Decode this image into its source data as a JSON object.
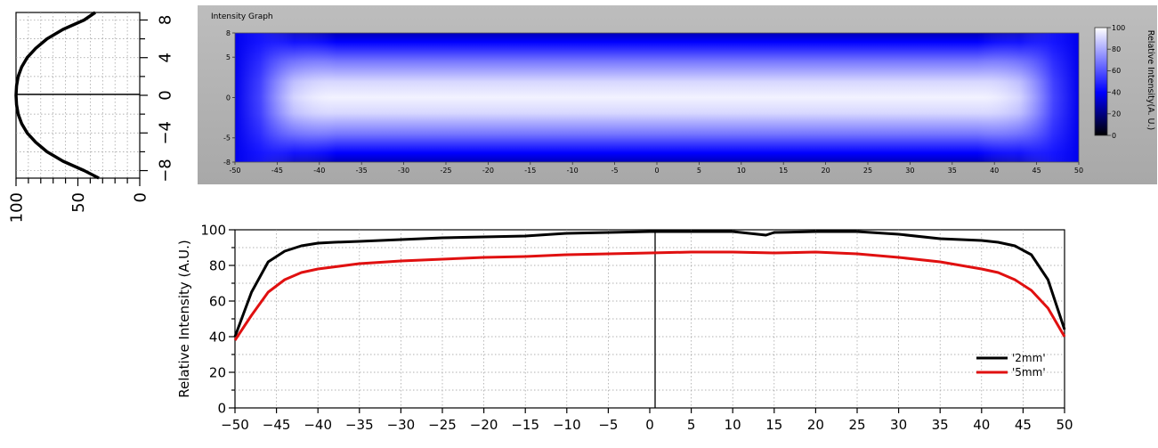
{
  "chart_data": [
    {
      "type": "line",
      "panel": "side-profile",
      "orientation": "vertical",
      "xlim": [
        100,
        0
      ],
      "x_ticks": [
        "100",
        "50",
        "0"
      ],
      "ylim": [
        -8.8,
        8.8
      ],
      "y_ticks": [
        "8",
        "4",
        "0",
        "-4",
        "-8"
      ],
      "grid": true,
      "series": [
        {
          "color": "#000000",
          "points": [
            [
              33,
              -8.8
            ],
            [
              45,
              -8
            ],
            [
              62,
              -7
            ],
            [
              75,
              -6
            ],
            [
              84,
              -5
            ],
            [
              91,
              -4
            ],
            [
              95.5,
              -3
            ],
            [
              98.3,
              -2
            ],
            [
              99.6,
              -1
            ],
            [
              100,
              0
            ],
            [
              99.6,
              1
            ],
            [
              98.3,
              2
            ],
            [
              95.5,
              3
            ],
            [
              91,
              4
            ],
            [
              84,
              5
            ],
            [
              75,
              6
            ],
            [
              62,
              7
            ],
            [
              45,
              8
            ],
            [
              36,
              8.8
            ]
          ]
        }
      ]
    },
    {
      "type": "heatmap",
      "panel": "intensity-graph",
      "title": "Intensity Graph",
      "xlim": [
        -50,
        50
      ],
      "x_ticks": [
        "-50",
        "-45",
        "-40",
        "-35",
        "-30",
        "-25",
        "-20",
        "-15",
        "-10",
        "-5",
        "0",
        "5",
        "10",
        "15",
        "20",
        "25",
        "30",
        "35",
        "40",
        "45",
        "50"
      ],
      "ylim": [
        -8,
        8
      ],
      "y_ticks": [
        "8",
        "5",
        "0",
        "-5",
        "-8"
      ],
      "colorbar": {
        "label": "Relative Intensity(A. U.)",
        "ticks": [
          "100",
          "80",
          "60",
          "40",
          "20",
          "0"
        ],
        "range": [
          0,
          100
        ],
        "colors": [
          "#000000",
          "#0000ff",
          "#ffffff"
        ]
      }
    },
    {
      "type": "line",
      "panel": "horizontal-profile",
      "ylabel": "Relative Intensity (A.U.)",
      "xlim": [
        -50,
        50
      ],
      "ylim": [
        0,
        100
      ],
      "x_ticks": [
        "-50",
        "-45",
        "-40",
        "-35",
        "-30",
        "-25",
        "-20",
        "-15",
        "-10",
        "-5",
        "0",
        "5",
        "10",
        "15",
        "20",
        "25",
        "30",
        "35",
        "40",
        "45",
        "50"
      ],
      "y_ticks": [
        "100",
        "80",
        "60",
        "40",
        "20",
        "0"
      ],
      "grid": true,
      "legend": "bottom-right",
      "series": [
        {
          "name": "'2mm'",
          "color": "#000000",
          "x": [
            -50,
            -48,
            -46,
            -44,
            -42,
            -40,
            -38,
            -35,
            -30,
            -25,
            -20,
            -15,
            -10,
            -5,
            0,
            5,
            10,
            14,
            15,
            20,
            25,
            30,
            35,
            40,
            42,
            44,
            46,
            48,
            50
          ],
          "y": [
            40,
            65,
            82,
            88,
            91,
            92.5,
            93,
            93.5,
            94.5,
            95.5,
            96,
            96.5,
            98,
            98.5,
            99,
            99,
            99,
            97,
            98.5,
            99,
            99,
            97.5,
            95,
            94,
            93,
            91,
            86,
            72,
            44
          ]
        },
        {
          "name": "'5mm'",
          "color": "#e01010",
          "x": [
            -50,
            -48,
            -46,
            -44,
            -42,
            -40,
            -35,
            -30,
            -25,
            -20,
            -15,
            -10,
            -5,
            0,
            5,
            10,
            15,
            20,
            25,
            30,
            35,
            40,
            42,
            44,
            46,
            48,
            50
          ],
          "y": [
            38,
            52,
            65,
            72,
            76,
            78,
            81,
            82.5,
            83.5,
            84.5,
            85,
            86,
            86.5,
            87,
            87.5,
            87.5,
            87,
            87.5,
            86.5,
            84.5,
            82,
            78,
            76,
            72,
            66,
            56,
            40
          ]
        }
      ]
    }
  ]
}
